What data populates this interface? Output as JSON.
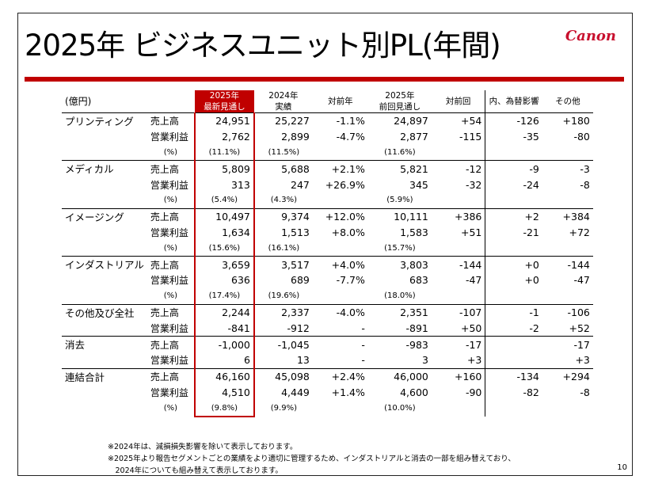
{
  "title": "2025年 ビジネスユニット別PL(年間)",
  "logo_text": "Canon",
  "brand_color": "#c00000",
  "header": {
    "unit": "(億円)",
    "col_fc_new_1": "2025年",
    "col_fc_new_2": "最新見通し",
    "col_actual_1": "2024年",
    "col_actual_2": "実績",
    "col_yoy": "対前年",
    "col_fc_prev_1": "2025年",
    "col_fc_prev_2": "前回見通し",
    "col_vs_prev": "対前回",
    "col_fx": "内、為替影響",
    "col_other": "その他"
  },
  "labels": {
    "sales": "売上高",
    "op": "営業利益",
    "pct": "(%)"
  },
  "segments": [
    {
      "name": "プリンティング",
      "sales": {
        "fc": "24,951",
        "act": "25,227",
        "yoy": "-1.1%",
        "prev": "24,897",
        "diff": "+54",
        "fx": "-126",
        "other": "+180"
      },
      "op": {
        "fc": "2,762",
        "act": "2,899",
        "yoy": "-4.7%",
        "prev": "2,877",
        "diff": "-115",
        "fx": "-35",
        "other": "-80"
      },
      "pct": {
        "fc": "(11.1%)",
        "act": "(11.5%)",
        "prev": "(11.6%)"
      }
    },
    {
      "name": "メディカル",
      "sales": {
        "fc": "5,809",
        "act": "5,688",
        "yoy": "+2.1%",
        "prev": "5,821",
        "diff": "-12",
        "fx": "-9",
        "other": "-3"
      },
      "op": {
        "fc": "313",
        "act": "247",
        "yoy": "+26.9%",
        "prev": "345",
        "diff": "-32",
        "fx": "-24",
        "other": "-8"
      },
      "pct": {
        "fc": "(5.4%)",
        "act": "(4.3%)",
        "prev": "(5.9%)"
      }
    },
    {
      "name": "イメージング",
      "sales": {
        "fc": "10,497",
        "act": "9,374",
        "yoy": "+12.0%",
        "prev": "10,111",
        "diff": "+386",
        "fx": "+2",
        "other": "+384"
      },
      "op": {
        "fc": "1,634",
        "act": "1,513",
        "yoy": "+8.0%",
        "prev": "1,583",
        "diff": "+51",
        "fx": "-21",
        "other": "+72"
      },
      "pct": {
        "fc": "(15.6%)",
        "act": "(16.1%)",
        "prev": "(15.7%)"
      }
    },
    {
      "name": "インダストリアル",
      "sales": {
        "fc": "3,659",
        "act": "3,517",
        "yoy": "+4.0%",
        "prev": "3,803",
        "diff": "-144",
        "fx": "+0",
        "other": "-144"
      },
      "op": {
        "fc": "636",
        "act": "689",
        "yoy": "-7.7%",
        "prev": "683",
        "diff": "-47",
        "fx": "+0",
        "other": "-47"
      },
      "pct": {
        "fc": "(17.4%)",
        "act": "(19.6%)",
        "prev": "(18.0%)"
      }
    },
    {
      "name": "その他及び全社",
      "sales": {
        "fc": "2,244",
        "act": "2,337",
        "yoy": "-4.0%",
        "prev": "2,351",
        "diff": "-107",
        "fx": "-1",
        "other": "-106"
      },
      "op": {
        "fc": "-841",
        "act": "-912",
        "yoy": "-",
        "prev": "-891",
        "diff": "+50",
        "fx": "-2",
        "other": "+52"
      }
    },
    {
      "name": "消去",
      "sales": {
        "fc": "-1,000",
        "act": "-1,045",
        "yoy": "-",
        "prev": "-983",
        "diff": "-17",
        "fx": "",
        "other": "-17"
      },
      "op": {
        "fc": "6",
        "act": "13",
        "yoy": "-",
        "prev": "3",
        "diff": "+3",
        "fx": "",
        "other": "+3"
      }
    },
    {
      "name": "連結合計",
      "sales": {
        "fc": "46,160",
        "act": "45,098",
        "yoy": "+2.4%",
        "prev": "46,000",
        "diff": "+160",
        "fx": "-134",
        "other": "+294"
      },
      "op": {
        "fc": "4,510",
        "act": "4,449",
        "yoy": "+1.4%",
        "prev": "4,600",
        "diff": "-90",
        "fx": "-82",
        "other": "-8"
      },
      "pct": {
        "fc": "(9.8%)",
        "act": "(9.9%)",
        "prev": "(10.0%)"
      }
    }
  ],
  "notes": [
    "※2024年は、減損損失影響を除いて表示しております。",
    "※2025年より報告セグメントごとの業績をより適切に管理するため、インダストリアルと消去の一部を組み替えており、",
    "　2024年についても組み替えて表示しております。"
  ],
  "page_number": "10"
}
